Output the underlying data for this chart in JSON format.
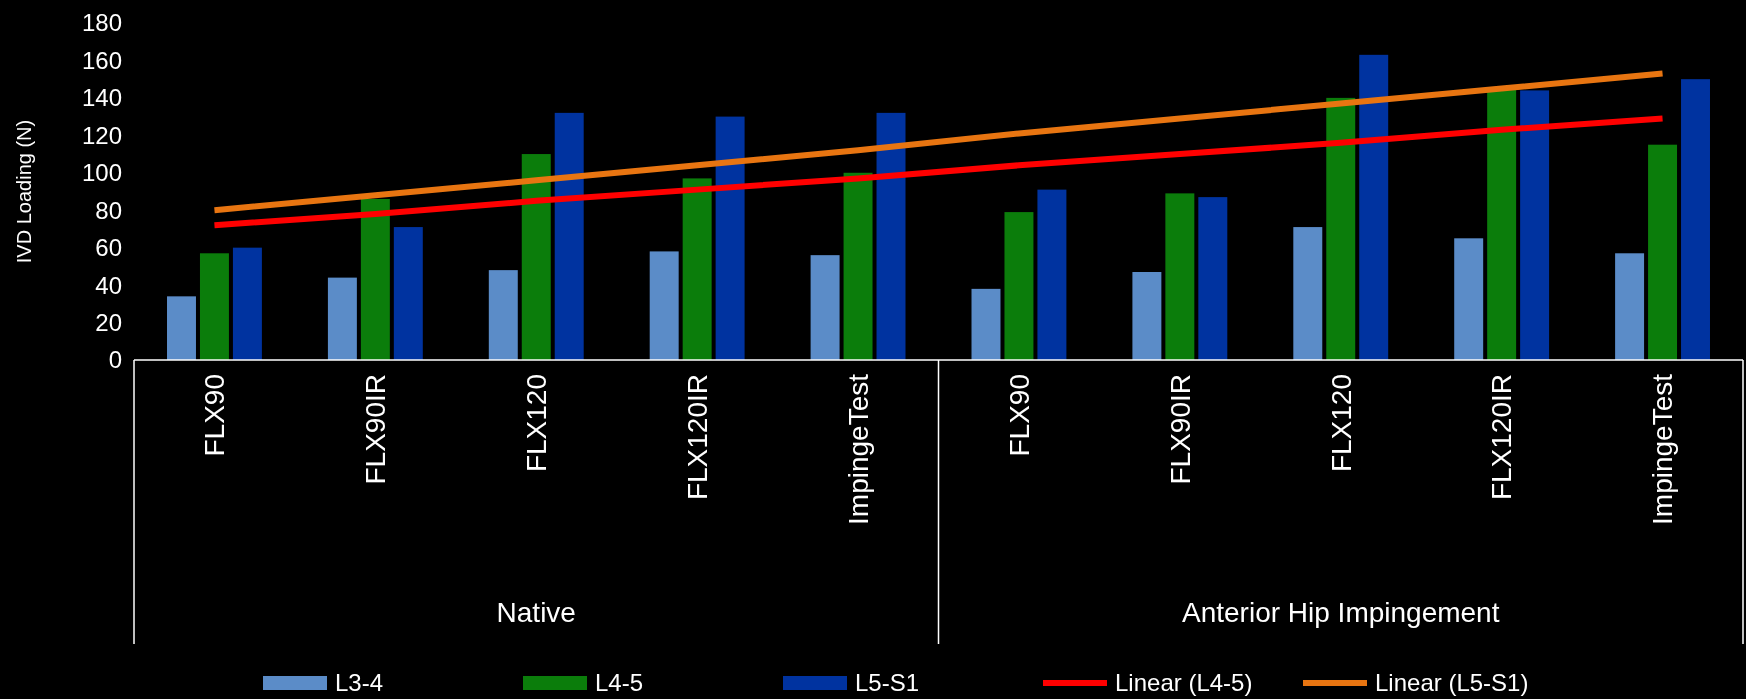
{
  "chart_data": {
    "type": "bar",
    "ylabel": "IVD Loading (N)",
    "categories": [
      "FLX90",
      "FLX90IR",
      "FLX120",
      "FLX120IR",
      "ImpingeTest",
      "FLX90",
      "FLX90IR",
      "FLX120",
      "FLX120IR",
      "ImpingeTest"
    ],
    "annotations": [
      "Native",
      "Anterior Hip Impingement"
    ],
    "ylim": [
      0,
      180
    ],
    "yticks": [
      0,
      20,
      40,
      60,
      80,
      100,
      120,
      140,
      160,
      180
    ],
    "legend": "bottom",
    "grid": false,
    "series": [
      {
        "name": "L3-4",
        "color": "#5b8cc8",
        "values": [
          34,
          44,
          48,
          58,
          56,
          38,
          47,
          71,
          65,
          57
        ]
      },
      {
        "name": "L4-5",
        "color": "#0b7d0b",
        "values": [
          57,
          86,
          110,
          97,
          100,
          79,
          89,
          140,
          145,
          115
        ]
      },
      {
        "name": "L5-S1",
        "color": "#0033a0",
        "values": [
          60,
          71,
          132,
          130,
          132,
          91,
          87,
          163,
          144,
          150
        ]
      },
      {
        "name": "Linear (L4-5)",
        "type": "line",
        "color": "#ff0000",
        "values": [
          72,
          78,
          85,
          91,
          97,
          104,
          110,
          116,
          123,
          129
        ]
      },
      {
        "name": "Linear (L5-S1)",
        "type": "line",
        "color": "#e87511",
        "values": [
          80,
          88,
          96,
          104,
          112,
          121,
          129,
          137,
          145,
          153
        ]
      }
    ]
  }
}
